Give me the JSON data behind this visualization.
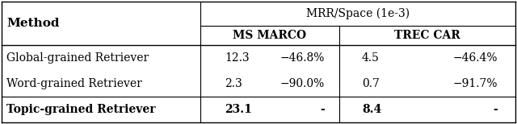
{
  "title": "MRR/Space (1e-3)",
  "col_header_1": "MS MARCO",
  "col_header_2": "TREC CAR",
  "row_header": "Method",
  "rows": [
    {
      "method": "Global-grained Retriever",
      "ms_mrr": "12.3",
      "ms_pct": "−46.8%",
      "trec_mrr": "4.5",
      "trec_pct": "−46.4%",
      "bold": false
    },
    {
      "method": "Word-grained Retriever",
      "ms_mrr": "2.3",
      "ms_pct": "−90.0%",
      "trec_mrr": "0.7",
      "trec_pct": "−91.7%",
      "bold": false
    },
    {
      "method": "Topic-grained Retriever",
      "ms_mrr": "23.1",
      "ms_pct": "-",
      "trec_mrr": "8.4",
      "trec_pct": "-",
      "bold": true
    }
  ],
  "figsize": [
    6.4,
    1.54
  ],
  "dpi": 100,
  "bg_color": "#ffffff",
  "line_color": "#000000",
  "font_size": 10
}
